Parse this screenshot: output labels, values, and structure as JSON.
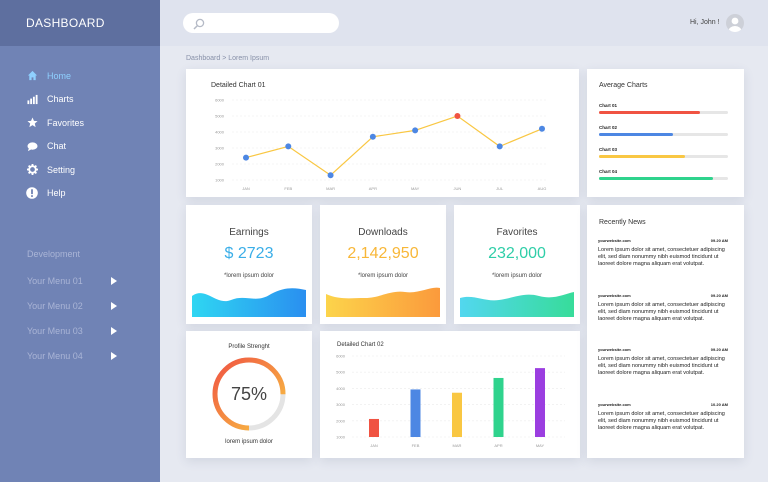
{
  "brand": "DASHBOARD",
  "nav": [
    {
      "label": "Home",
      "icon": "home-icon",
      "active": true
    },
    {
      "label": "Charts",
      "icon": "bar-chart-icon"
    },
    {
      "label": "Favorites",
      "icon": "star-icon"
    },
    {
      "label": "Chat",
      "icon": "chat-bubble-icon"
    },
    {
      "label": "Setting",
      "icon": "gear-icon"
    },
    {
      "label": "Help",
      "icon": "exclamation-icon"
    }
  ],
  "development": {
    "title": "Development",
    "menus": [
      "Your Menu 01",
      "Your Menu 02",
      "Your Menu 03",
      "Your Menu 04"
    ]
  },
  "header": {
    "search_placeholder": "",
    "greeting": "Hi, John !"
  },
  "breadcrumb": "Dashboard > Lorem Ipsum",
  "chart1": {
    "title": "Detailed Chart 01",
    "chart_data": {
      "type": "line",
      "categories": [
        "JAN",
        "FEB",
        "MAR",
        "APR",
        "MAY",
        "JUN",
        "JUL",
        "AUG"
      ],
      "values": [
        2400,
        3100,
        1300,
        3700,
        4100,
        5000,
        3100,
        4200
      ],
      "yticks": [
        1000,
        2000,
        3000,
        4000,
        5000,
        6000
      ],
      "ylim": [
        1000,
        6000
      ],
      "highlight_index": 5,
      "line_color": "#f9c743",
      "point_color": "#4d87e3",
      "highlight_color": "#f05342"
    }
  },
  "average": {
    "title": "Average Charts",
    "items": [
      {
        "label": "Chart 01",
        "value": 0.78,
        "color": "#f05342"
      },
      {
        "label": "Chart 02",
        "value": 0.57,
        "color": "#4d87e3"
      },
      {
        "label": "Chart 03",
        "value": 0.67,
        "color": "#f9c743"
      },
      {
        "label": "Chart 04",
        "value": 0.88,
        "color": "#2fd38d"
      }
    ]
  },
  "stats": [
    {
      "title": "Earnings",
      "value": "$ 2723",
      "sub": "*lorem ipsum dolor",
      "color": "#3aaee8"
    },
    {
      "title": "Downloads",
      "value": "2,142,950",
      "sub": "*lorem ipsum dolor",
      "color": "#f8b738"
    },
    {
      "title": "Favorites",
      "value": "232,000",
      "sub": "*lorem ipsum dolor",
      "color": "#2fcea8"
    }
  ],
  "profile": {
    "title": "Profile Strenght",
    "value": "75%",
    "fraction": 0.75,
    "sub": "lorem ipsum dolor"
  },
  "chart2": {
    "title": "Detailed Chart 02",
    "chart_data": {
      "type": "bar",
      "categories": [
        "JAN",
        "FEB",
        "MAR",
        "APR",
        "MAY"
      ],
      "values": [
        1100,
        2900,
        2700,
        3600,
        4200
      ],
      "colors": [
        "#f05342",
        "#4d87e3",
        "#f9c743",
        "#2fd38d",
        "#9b3ee0"
      ],
      "yticks": [
        1000,
        2000,
        3000,
        4000,
        5000,
        6000
      ],
      "ylim": [
        0,
        5000
      ]
    }
  },
  "news": {
    "title": "Recently News",
    "items": [
      {
        "site": "yourwebsite.com",
        "time": "09.20 AM",
        "text": "Lorem ipsum dolor sit amet, consectetuer adipiscing elit, sed diam nonummy nibh euismod tincidunt ut laoreet dolore magna aliquam erat volutpat."
      },
      {
        "site": "yourwebsite.com",
        "time": "09.20 AM",
        "text": "Lorem ipsum dolor sit amet, consectetuer adipiscing elit, sed diam nonummy nibh euismod tincidunt ut laoreet dolore magna aliquam erat volutpat."
      },
      {
        "site": "yourwebsite.com",
        "time": "09.20 AM",
        "text": "Lorem ipsum dolor sit amet, consectetuer adipiscing elit, sed diam nonummy nibh euismod tincidunt ut laoreet dolore magna aliquam erat volutpat."
      },
      {
        "site": "yourwebsite.com",
        "time": "10.20 AM",
        "text": "Lorem ipsum dolor sit amet, consectetuer adipiscing elit, sed diam nonummy nibh euismod tincidunt ut laoreet dolore magna aliquam erat volutpat."
      }
    ]
  }
}
